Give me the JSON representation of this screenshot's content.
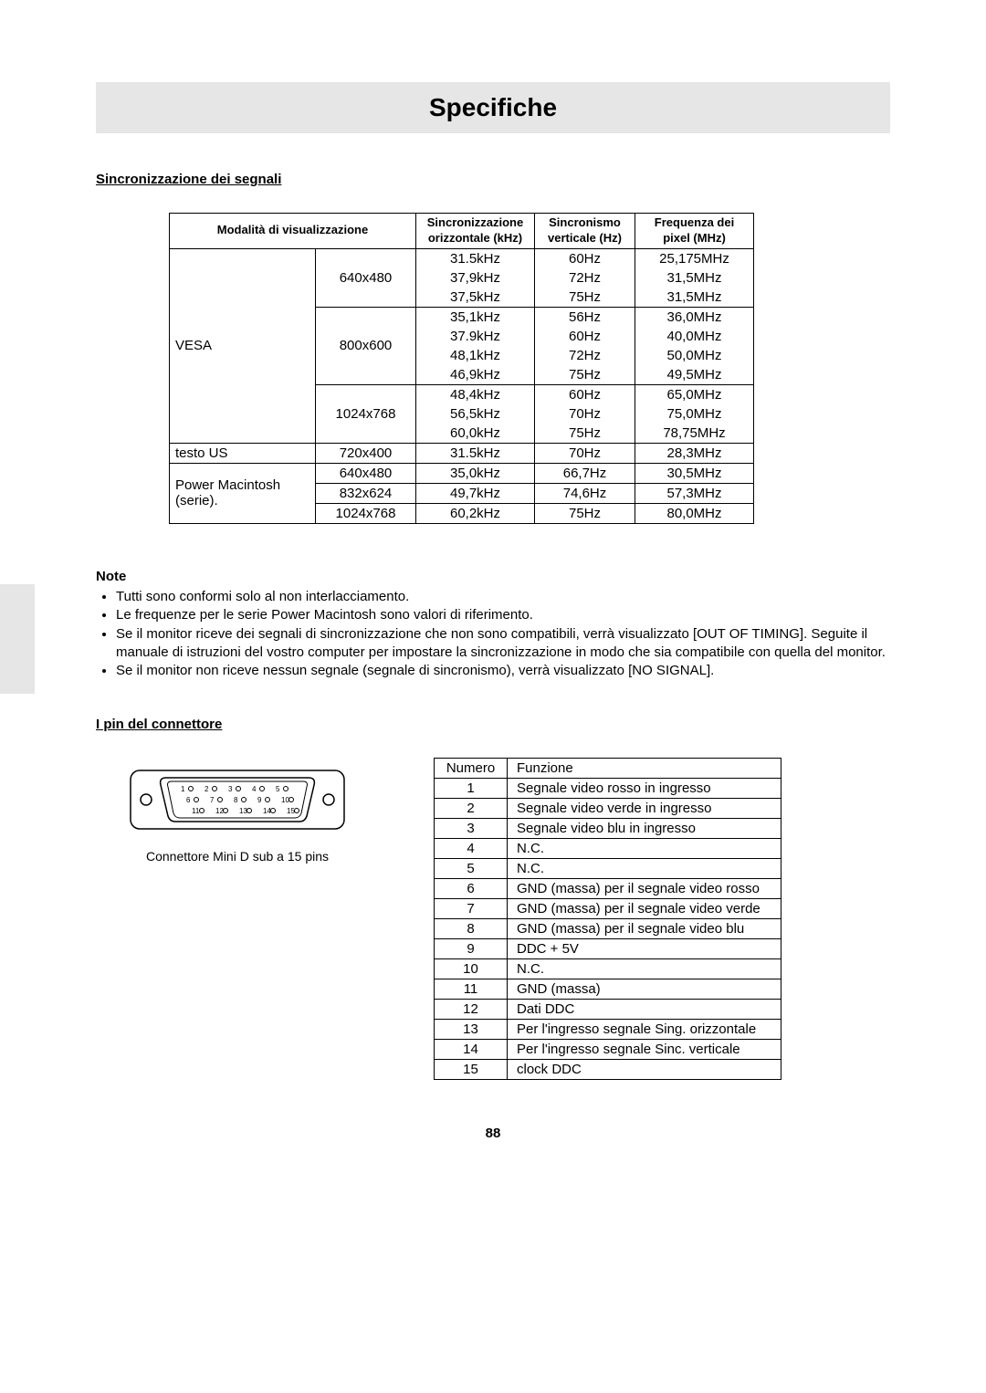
{
  "title": "Specifiche",
  "section_sync_heading": "Sincronizzazione dei segnali",
  "section_pin_heading": "I pin del connettore",
  "page_number": "88",
  "sync_table": {
    "headers": {
      "mode": "Modalità di visualizzazione",
      "hsync": "Sincronizzazione",
      "hsync_sub": "orizzontale (kHz)",
      "vsync": "Sincronismo",
      "vsync_sub": "verticale (Hz)",
      "pixel": "Frequenza dei",
      "pixel_sub": "pixel (MHz)"
    },
    "groups": [
      {
        "mode": "VESA",
        "blocks": [
          {
            "res": "640x480",
            "rows": [
              {
                "h": "31.5kHz",
                "v": "60Hz",
                "f": "25,175MHz"
              },
              {
                "h": "37,9kHz",
                "v": "72Hz",
                "f": "31,5MHz"
              },
              {
                "h": "37,5kHz",
                "v": "75Hz",
                "f": "31,5MHz"
              }
            ]
          },
          {
            "res": "800x600",
            "rows": [
              {
                "h": "35,1kHz",
                "v": "56Hz",
                "f": "36,0MHz"
              },
              {
                "h": "37.9kHz",
                "v": "60Hz",
                "f": "40,0MHz"
              },
              {
                "h": "48,1kHz",
                "v": "72Hz",
                "f": "50,0MHz"
              },
              {
                "h": "46,9kHz",
                "v": "75Hz",
                "f": "49,5MHz"
              }
            ]
          },
          {
            "res": "1024x768",
            "rows": [
              {
                "h": "48,4kHz",
                "v": "60Hz",
                "f": "65,0MHz"
              },
              {
                "h": "56,5kHz",
                "v": "70Hz",
                "f": "75,0MHz"
              },
              {
                "h": "60,0kHz",
                "v": "75Hz",
                "f": "78,75MHz"
              }
            ]
          }
        ]
      },
      {
        "mode": "testo US",
        "blocks": [
          {
            "res": "720x400",
            "rows": [
              {
                "h": "31.5kHz",
                "v": "70Hz",
                "f": "28,3MHz"
              }
            ]
          }
        ]
      },
      {
        "mode": "Power Macintosh (serie).",
        "blocks": [
          {
            "res": "640x480",
            "rows": [
              {
                "h": "35,0kHz",
                "v": "66,7Hz",
                "f": "30,5MHz"
              }
            ]
          },
          {
            "res": "832x624",
            "rows": [
              {
                "h": "49,7kHz",
                "v": "74,6Hz",
                "f": "57,3MHz"
              }
            ]
          },
          {
            "res": "1024x768",
            "rows": [
              {
                "h": "60,2kHz",
                "v": "75Hz",
                "f": "80,0MHz"
              }
            ]
          }
        ]
      }
    ]
  },
  "note": {
    "label": "Note",
    "items": [
      "Tutti sono conformi solo al non interlacciamento.",
      "Le frequenze per le serie Power Macintosh  sono valori di riferimento.",
      "Se il monitor riceve dei segnali di sincronizzazione che non sono compatibili, verrà visualizzato [OUT OF TIMING]. Seguite il manuale di istruzioni del vostro computer per impostare la sincronizzazione in modo che sia compatibile con quella del monitor.",
      "Se il monitor non riceve nessun segnale (segnale di sincronismo), verrà visualizzato [NO SIGNAL]."
    ]
  },
  "connector": {
    "caption": "Connettore Mini D sub a 15 pins",
    "pin_header_num": "Numero",
    "pin_header_fun": "Funzione",
    "pin_labels": [
      "1",
      "2",
      "3",
      "4",
      "5",
      "6",
      "7",
      "8",
      "9",
      "10",
      "11",
      "12",
      "13",
      "14",
      "15"
    ],
    "pins": [
      {
        "n": "1",
        "f": "Segnale video rosso in ingresso"
      },
      {
        "n": "2",
        "f": "Segnale video verde in ingresso"
      },
      {
        "n": "3",
        "f": "Segnale video blu in ingresso"
      },
      {
        "n": "4",
        "f": "N.C."
      },
      {
        "n": "5",
        "f": "N.C."
      },
      {
        "n": "6",
        "f": "GND (massa) per il segnale video rosso"
      },
      {
        "n": "7",
        "f": "GND (massa) per il segnale video verde"
      },
      {
        "n": "8",
        "f": "GND (massa) per il segnale video blu"
      },
      {
        "n": "9",
        "f": "DDC + 5V"
      },
      {
        "n": "10",
        "f": "N.C."
      },
      {
        "n": "11",
        "f": "GND (massa)"
      },
      {
        "n": "12",
        "f": "Dati DDC"
      },
      {
        "n": "13",
        "f": "Per l'ingresso segnale Sing. orizzontale"
      },
      {
        "n": "14",
        "f": "Per l'ingresso segnale Sinc. verticale"
      },
      {
        "n": "15",
        "f": "clock DDC"
      }
    ]
  }
}
